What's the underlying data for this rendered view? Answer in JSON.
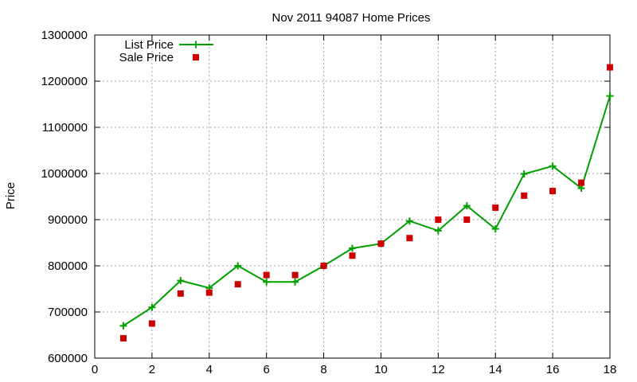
{
  "chart_data": {
    "type": "line",
    "title": "Nov 2011 94087 Home Prices",
    "xlabel": "",
    "ylabel": "Price",
    "xlim": [
      0,
      18
    ],
    "ylim": [
      600000,
      1300000
    ],
    "x_ticks": [
      0,
      2,
      4,
      6,
      8,
      10,
      12,
      14,
      16,
      18
    ],
    "x_tick_labels": [
      "0",
      "2",
      "4",
      "6",
      "8",
      "10",
      "12",
      "14",
      "16",
      "18"
    ],
    "y_ticks": [
      600000,
      700000,
      800000,
      900000,
      1000000,
      1100000,
      1200000,
      1300000
    ],
    "y_tick_labels": [
      "600000",
      "700000",
      "800000",
      "900000",
      "1000000",
      "1100000",
      "1200000",
      "1300000"
    ],
    "grid": true,
    "legend_position": "top-left",
    "x": [
      1,
      2,
      3,
      4,
      5,
      6,
      7,
      8,
      9,
      10,
      11,
      12,
      13,
      14,
      15,
      16,
      17,
      18
    ],
    "series": [
      {
        "name": "List Price",
        "style": "lines-and-plus-points",
        "color": "#00a000",
        "values": [
          670000,
          710000,
          768000,
          752000,
          800000,
          765000,
          765000,
          800000,
          838000,
          848000,
          897000,
          876000,
          930000,
          880000,
          999000,
          1016000,
          968000,
          1168000
        ]
      },
      {
        "name": "Sale Price",
        "style": "square-points",
        "color": "#cc0000",
        "values": [
          643000,
          675000,
          740000,
          742000,
          760000,
          780000,
          780000,
          800000,
          822000,
          848000,
          860000,
          900000,
          900000,
          926000,
          952000,
          962000,
          980000,
          1230000
        ]
      }
    ]
  }
}
